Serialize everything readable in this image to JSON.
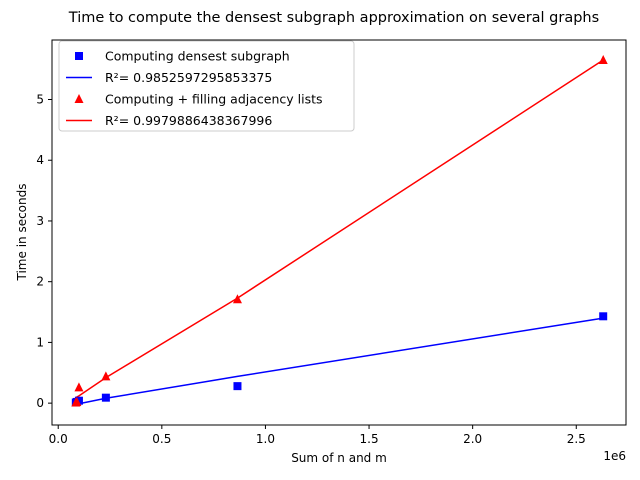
{
  "chart_data": {
    "type": "scatter",
    "title": "Time to compute the densest subgraph approximation on several graphs",
    "xlabel": "Sum of n and m",
    "ylabel": "Time in seconds",
    "x_offset_label": "1e6",
    "xlim": [
      -0.03,
      2.74
    ],
    "ylim": [
      -0.36,
      5.98
    ],
    "x_ticks": [
      0.0,
      0.5,
      1.0,
      1.5,
      2.0,
      2.5
    ],
    "x_tick_labels": [
      "0.0",
      "0.5",
      "1.0",
      "1.5",
      "2.0",
      "2.5"
    ],
    "y_ticks": [
      0,
      1,
      2,
      3,
      4,
      5
    ],
    "y_tick_labels": [
      "0",
      "1",
      "2",
      "3",
      "4",
      "5"
    ],
    "grid": false,
    "legend_position": "top-left",
    "series": [
      {
        "name": "Computing densest subgraph",
        "kind": "points",
        "marker": "square",
        "color": "#0000ff",
        "x": [
          0.085,
          0.09,
          0.1,
          0.23,
          0.865,
          2.63
        ],
        "y": [
          0.01,
          0.02,
          0.04,
          0.09,
          0.28,
          1.43
        ]
      },
      {
        "name": "R²= 0.9852597295853375",
        "kind": "line",
        "color": "#0000ff",
        "x": [
          0.085,
          0.09,
          0.1,
          0.23,
          0.865,
          2.63
        ],
        "y": [
          -0.01,
          -0.01,
          -0.01,
          0.08,
          0.44,
          1.4
        ]
      },
      {
        "name": "Computing + filling adjacency lists",
        "kind": "points",
        "marker": "triangle",
        "color": "#ff0000",
        "x": [
          0.085,
          0.09,
          0.1,
          0.23,
          0.865,
          2.63
        ],
        "y": [
          0.01,
          0.02,
          0.26,
          0.44,
          1.71,
          5.65
        ]
      },
      {
        "name": "R²= 0.9979886438367996",
        "kind": "line",
        "color": "#ff0000",
        "x": [
          0.085,
          0.09,
          0.1,
          0.23,
          0.865,
          2.63
        ],
        "y": [
          0.09,
          0.1,
          0.12,
          0.42,
          1.73,
          5.65
        ]
      }
    ]
  }
}
